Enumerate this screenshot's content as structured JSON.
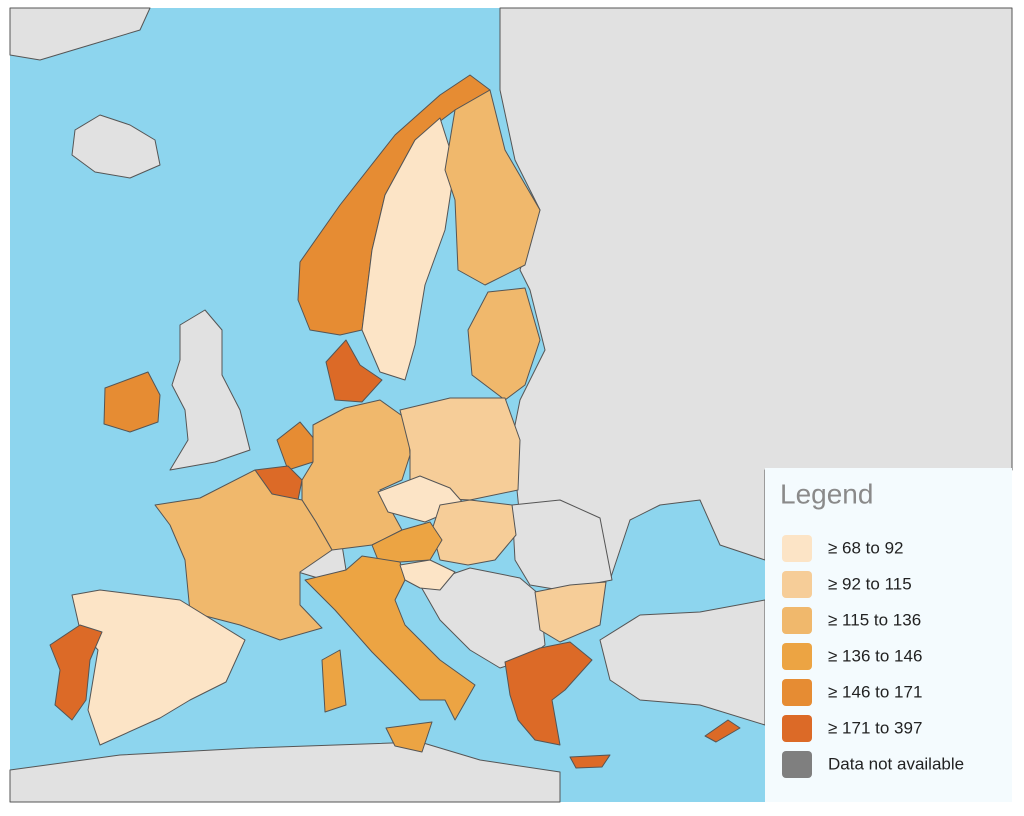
{
  "legend": {
    "title": "Legend",
    "items": [
      {
        "label": "≥ 68 to 92",
        "color": "#fce4c6"
      },
      {
        "label": "≥ 92 to 115",
        "color": "#f6cd98"
      },
      {
        "label": "≥ 115 to 136",
        "color": "#f0b86c"
      },
      {
        "label": "≥ 136 to 146",
        "color": "#eca443"
      },
      {
        "label": "≥ 146 to 171",
        "color": "#e68c33"
      },
      {
        "label": "≥ 171 to 397",
        "color": "#dc6a27"
      },
      {
        "label": "Data not available",
        "color": "#7f7f7f"
      }
    ]
  }
}
